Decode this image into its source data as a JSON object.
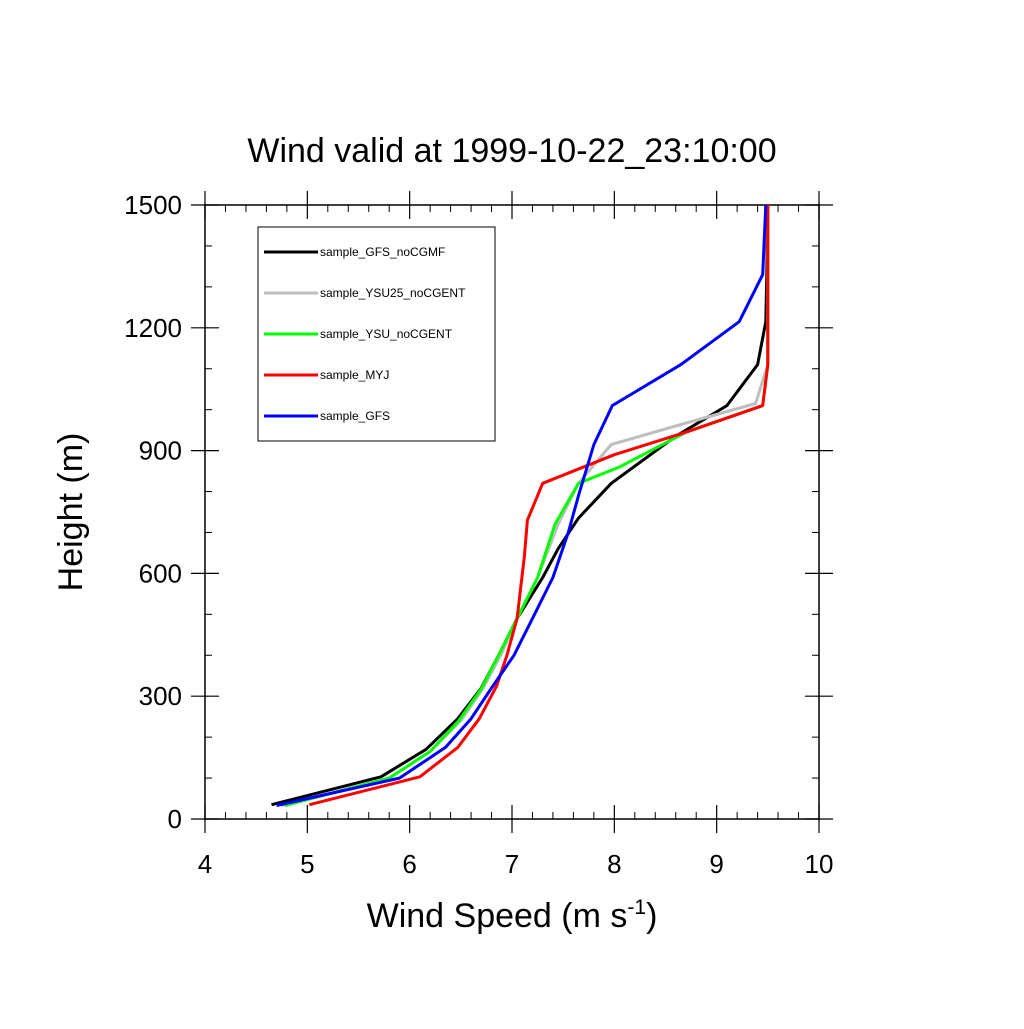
{
  "chart_data": {
    "type": "line",
    "title": "Wind valid at 1999-10-22_23:10:00",
    "xlabel": "Wind Speed (m s",
    "xlabel_superscript": "-1",
    "xlabel_suffix": ")",
    "ylabel": "Height (m)",
    "xlim": [
      4,
      10
    ],
    "ylim": [
      0,
      1500
    ],
    "xticks": [
      4,
      5,
      6,
      7,
      8,
      9,
      10
    ],
    "yticks": [
      0,
      300,
      600,
      900,
      1200,
      1500
    ],
    "legend_position": "top-left",
    "series": [
      {
        "name": "sample_GFS_noCGMF",
        "color": "#000000",
        "points": [
          [
            4.65,
            35
          ],
          [
            5.72,
            103
          ],
          [
            6.16,
            170
          ],
          [
            6.47,
            245
          ],
          [
            6.7,
            320
          ],
          [
            6.88,
            405
          ],
          [
            7.05,
            490
          ],
          [
            7.3,
            590
          ],
          [
            7.45,
            660
          ],
          [
            7.65,
            735
          ],
          [
            7.97,
            820
          ],
          [
            8.6,
            935
          ],
          [
            9.1,
            1010
          ],
          [
            9.4,
            1110
          ],
          [
            9.48,
            1215
          ],
          [
            9.49,
            1330
          ],
          [
            9.5,
            1500
          ]
        ]
      },
      {
        "name": "sample_YSU25_noCGENT",
        "color": "#bebebe",
        "points": [
          [
            4.75,
            33
          ],
          [
            5.8,
            100
          ],
          [
            6.2,
            165
          ],
          [
            6.5,
            240
          ],
          [
            6.72,
            320
          ],
          [
            6.9,
            405
          ],
          [
            7.05,
            490
          ],
          [
            7.25,
            590
          ],
          [
            7.45,
            720
          ],
          [
            7.65,
            820
          ],
          [
            7.97,
            915
          ],
          [
            8.6,
            960
          ],
          [
            9.38,
            1015
          ],
          [
            9.5,
            1110
          ],
          [
            9.5,
            1220
          ],
          [
            9.5,
            1330
          ],
          [
            9.5,
            1500
          ]
        ]
      },
      {
        "name": "sample_YSU_noCGENT",
        "color": "#00ff00",
        "points": [
          [
            4.78,
            33
          ],
          [
            5.8,
            100
          ],
          [
            6.2,
            165
          ],
          [
            6.48,
            240
          ],
          [
            6.7,
            318
          ],
          [
            6.88,
            405
          ],
          [
            7.05,
            490
          ],
          [
            7.25,
            590
          ],
          [
            7.42,
            720
          ],
          [
            7.65,
            820
          ],
          [
            8.05,
            860
          ],
          [
            8.7,
            945
          ],
          [
            9.45,
            1010
          ],
          [
            9.5,
            1110
          ],
          [
            9.5,
            1220
          ],
          [
            9.5,
            1330
          ],
          [
            9.5,
            1500
          ]
        ]
      },
      {
        "name": "sample_MYJ",
        "color": "#ff0000",
        "points": [
          [
            5.02,
            35
          ],
          [
            6.1,
            103
          ],
          [
            6.47,
            175
          ],
          [
            6.68,
            245
          ],
          [
            6.85,
            325
          ],
          [
            6.95,
            400
          ],
          [
            7.05,
            490
          ],
          [
            7.12,
            640
          ],
          [
            7.15,
            730
          ],
          [
            7.3,
            820
          ],
          [
            8.0,
            890
          ],
          [
            8.7,
            945
          ],
          [
            9.45,
            1010
          ],
          [
            9.5,
            1110
          ],
          [
            9.5,
            1220
          ],
          [
            9.5,
            1330
          ],
          [
            9.5,
            1500
          ]
        ]
      },
      {
        "name": "sample_GFS",
        "color": "#0000ff",
        "points": [
          [
            4.7,
            33
          ],
          [
            5.9,
            100
          ],
          [
            6.35,
            175
          ],
          [
            6.6,
            245
          ],
          [
            6.8,
            320
          ],
          [
            7.02,
            400
          ],
          [
            7.2,
            490
          ],
          [
            7.4,
            590
          ],
          [
            7.55,
            700
          ],
          [
            7.65,
            790
          ],
          [
            7.8,
            915
          ],
          [
            7.98,
            1010
          ],
          [
            8.65,
            1110
          ],
          [
            9.22,
            1215
          ],
          [
            9.45,
            1330
          ],
          [
            9.48,
            1500
          ]
        ]
      }
    ]
  }
}
